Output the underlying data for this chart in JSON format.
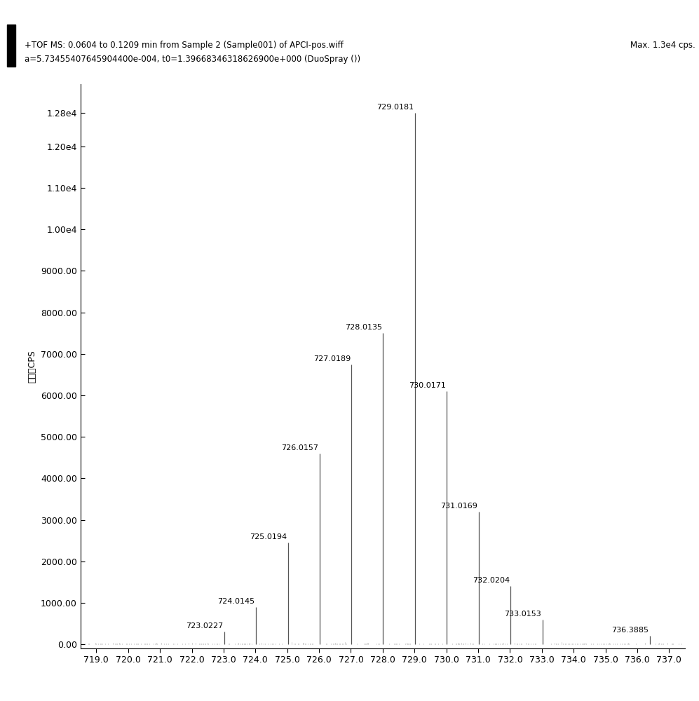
{
  "title_line1": "+TOF MS: 0.0604 to 0.1209 min from Sample 2 (Sample001) of APCI-pos.wiff",
  "title_line2": "a=5.73455407645904400e-004, t0=1.39668346318626900e+000 (DuoSpray ())",
  "max_label": "Max. 1.3e4 cps.",
  "ylabel": "强度，CPS",
  "xlim": [
    718.5,
    737.5
  ],
  "ylim": [
    -100,
    13500
  ],
  "yticks": [
    0,
    1000,
    2000,
    3000,
    4000,
    5000,
    6000,
    7000,
    8000,
    9000,
    10000,
    11000,
    12000,
    12800
  ],
  "ytick_labels": [
    "0.00",
    "1000.00",
    "2000.00",
    "3000.00",
    "4000.00",
    "5000.00",
    "6000.00",
    "7000.00",
    "8000.00",
    "9000.00",
    "1.00e4",
    "1.10e4",
    "1.20e4",
    "1.28e4"
  ],
  "xticks": [
    719.0,
    720.0,
    721.0,
    722.0,
    723.0,
    724.0,
    725.0,
    726.0,
    727.0,
    728.0,
    729.0,
    730.0,
    731.0,
    732.0,
    733.0,
    734.0,
    735.0,
    736.0,
    737.0
  ],
  "peaks": [
    {
      "mz": 723.0227,
      "intensity": 310,
      "label_side": "left"
    },
    {
      "mz": 724.0145,
      "intensity": 900,
      "label_side": "left"
    },
    {
      "mz": 725.0194,
      "intensity": 2450,
      "label_side": "left"
    },
    {
      "mz": 726.0157,
      "intensity": 4600,
      "label_side": "left"
    },
    {
      "mz": 727.0189,
      "intensity": 6750,
      "label_side": "left"
    },
    {
      "mz": 728.0135,
      "intensity": 7500,
      "label_side": "left"
    },
    {
      "mz": 729.0181,
      "intensity": 12800,
      "label_side": "left"
    },
    {
      "mz": 730.0171,
      "intensity": 6100,
      "label_side": "left"
    },
    {
      "mz": 731.0169,
      "intensity": 3200,
      "label_side": "left"
    },
    {
      "mz": 732.0204,
      "intensity": 1400,
      "label_side": "left"
    },
    {
      "mz": 733.0153,
      "intensity": 600,
      "label_side": "left"
    },
    {
      "mz": 736.3885,
      "intensity": 200,
      "label_side": "left"
    }
  ],
  "line_color": "#555555",
  "bg_color": "#ffffff",
  "label_color": "#000000"
}
